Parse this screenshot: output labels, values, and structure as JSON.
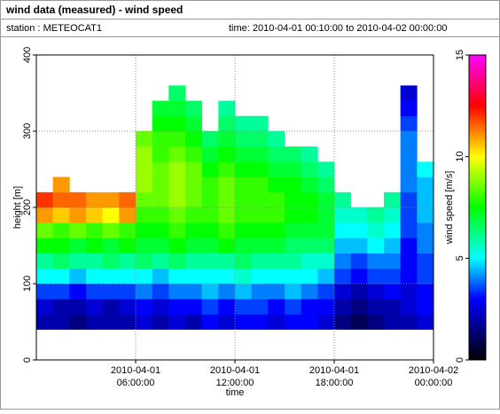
{
  "header": {
    "title": "wind data (measured) - wind speed",
    "station": "station : METEOCAT1",
    "time": "time: 2010-04-01 00:10:00 to 2010-04-02 00:00:00"
  },
  "chart_data": {
    "type": "heatmap",
    "xlabel": "time",
    "ylabel": "height [m]",
    "colorbar_label": "wind speed [m/s]",
    "xlim": [
      0,
      24
    ],
    "ylim": [
      0,
      400
    ],
    "zlim": [
      0,
      15
    ],
    "xticks": [
      {
        "value": 6,
        "label": "2010-04-01 06:00:00"
      },
      {
        "value": 12,
        "label": "2010-04-01 12:00:00"
      },
      {
        "value": 18,
        "label": "2010-04-01 18:00:00"
      },
      {
        "value": 24,
        "label": "2010-04-02 00:00:00"
      }
    ],
    "yticks": [
      0,
      100,
      200,
      300,
      400
    ],
    "zticks": [
      0,
      5,
      10,
      15
    ],
    "grid": true,
    "colormap": [
      [
        0,
        "#000000"
      ],
      [
        1.5,
        "#000080"
      ],
      [
        3,
        "#0000ff"
      ],
      [
        5,
        "#00ffff"
      ],
      [
        7.5,
        "#00ff00"
      ],
      [
        10,
        "#ffff00"
      ],
      [
        12.5,
        "#ff0000"
      ],
      [
        15,
        "#ff00ff"
      ]
    ],
    "xbins": [
      0,
      1,
      2,
      3,
      4,
      5,
      6,
      7,
      8,
      9,
      10,
      11,
      12,
      13,
      14,
      15,
      16,
      17,
      18,
      19,
      20,
      21,
      22,
      23,
      24
    ],
    "ybins": [
      40,
      60,
      80,
      100,
      120,
      140,
      160,
      180,
      200,
      220,
      240,
      260,
      280,
      300,
      320,
      340,
      360
    ],
    "z": [
      [
        2,
        2,
        1.5,
        2,
        2,
        2,
        2.5,
        2,
        2.5,
        2,
        3,
        2.5,
        3,
        3,
        2.5,
        3,
        3,
        2.5,
        1.5,
        1,
        1.5,
        2,
        2,
        2.5
      ],
      [
        2.5,
        2,
        2,
        2.5,
        2,
        2.5,
        3,
        2.5,
        3,
        3,
        3.5,
        3,
        3.5,
        3.5,
        3,
        3.5,
        3,
        3,
        2,
        1.5,
        2,
        2,
        2.5,
        3
      ],
      [
        3.5,
        3.5,
        3,
        3.5,
        3.5,
        3.5,
        4,
        3.5,
        4,
        4,
        4.5,
        4,
        4.5,
        4,
        4,
        4.5,
        4,
        3.5,
        2.5,
        2,
        2.5,
        3,
        2.5,
        3
      ],
      [
        5,
        5,
        4.5,
        5,
        5,
        5,
        5,
        4.5,
        5,
        5,
        5,
        5,
        5.5,
        5,
        5,
        5,
        5,
        4.5,
        3.5,
        3,
        3.5,
        3.5,
        3,
        3.5
      ],
      [
        6,
        6.5,
        6,
        6,
        6.5,
        6,
        6.5,
        6,
        6.5,
        6,
        6,
        6,
        6.5,
        6,
        6,
        6,
        5.5,
        5.5,
        4,
        3.5,
        4,
        4,
        3,
        3.5
      ],
      [
        7.5,
        7.5,
        7,
        7.5,
        7,
        7.5,
        7,
        7,
        7.5,
        7,
        7,
        7.5,
        7,
        7,
        7,
        6.5,
        6.5,
        6.5,
        4.5,
        4.5,
        5,
        4.5,
        3,
        4
      ],
      [
        8.5,
        8,
        8.5,
        8,
        8.5,
        8,
        7.5,
        7.5,
        8,
        7.5,
        7.5,
        8,
        7.5,
        7.5,
        7.5,
        7,
        7,
        7,
        5,
        5,
        5.5,
        5,
        3.5,
        4
      ],
      [
        11,
        10.5,
        11,
        10.5,
        10,
        11,
        8,
        8,
        8.5,
        8,
        8,
        8.5,
        8,
        8,
        8,
        7.5,
        7.5,
        7,
        5.5,
        5.5,
        6,
        5.5,
        3.5,
        4.5
      ],
      [
        12,
        11.5,
        11.5,
        11,
        11,
        11.5,
        8.5,
        8.5,
        9,
        8.5,
        8,
        8.5,
        8,
        8,
        8,
        7.5,
        7.5,
        7,
        6,
        null,
        null,
        6,
        3.5,
        4.5
      ],
      [
        null,
        11,
        null,
        null,
        null,
        null,
        9,
        8.5,
        9,
        8.5,
        8,
        8.5,
        8,
        8,
        7.5,
        7.5,
        7,
        6.5,
        null,
        null,
        null,
        null,
        4,
        4.5
      ],
      [
        null,
        null,
        null,
        null,
        null,
        null,
        9,
        8.5,
        9,
        8.5,
        7.5,
        8,
        7.5,
        7.5,
        7,
        7,
        6.5,
        6,
        null,
        null,
        null,
        null,
        4,
        5
      ],
      [
        null,
        null,
        null,
        null,
        null,
        null,
        9,
        8,
        8.5,
        8,
        7,
        7.5,
        7,
        7,
        6.5,
        6.5,
        6,
        null,
        null,
        null,
        null,
        null,
        4,
        null
      ],
      [
        null,
        null,
        null,
        null,
        null,
        null,
        8.5,
        8,
        8,
        7.5,
        6.5,
        7,
        6.5,
        6.5,
        6,
        null,
        null,
        null,
        null,
        null,
        null,
        null,
        4,
        null
      ],
      [
        null,
        null,
        null,
        null,
        null,
        null,
        null,
        7.5,
        7.5,
        7,
        null,
        6.5,
        6,
        6,
        null,
        null,
        null,
        null,
        null,
        null,
        null,
        null,
        3.5,
        null
      ],
      [
        null,
        null,
        null,
        null,
        null,
        null,
        null,
        7,
        7,
        6.5,
        null,
        6,
        null,
        null,
        null,
        null,
        null,
        null,
        null,
        null,
        null,
        null,
        3,
        null
      ],
      [
        null,
        null,
        null,
        null,
        null,
        null,
        null,
        null,
        6.5,
        null,
        null,
        null,
        null,
        null,
        null,
        null,
        null,
        null,
        null,
        null,
        null,
        null,
        2.5,
        null
      ]
    ]
  }
}
